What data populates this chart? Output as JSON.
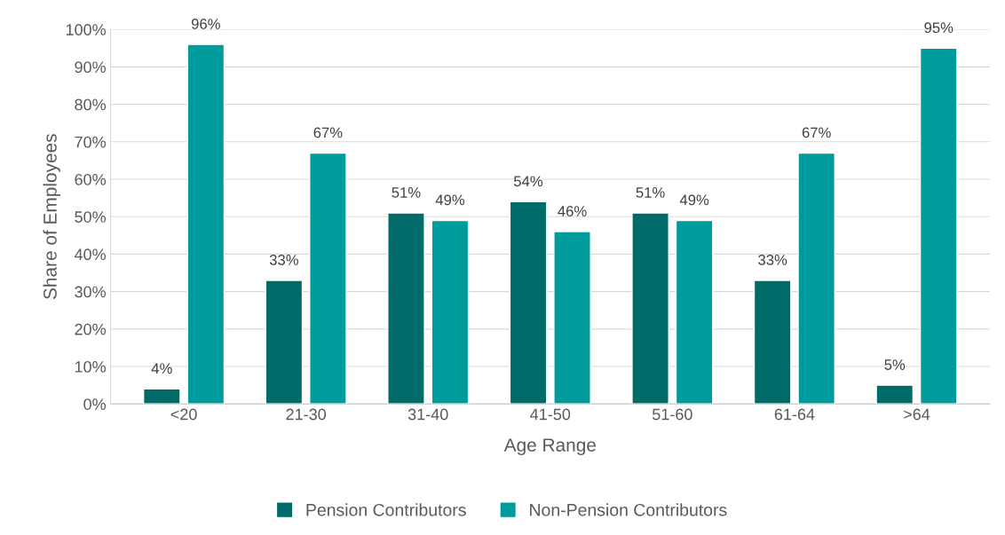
{
  "chart_data": {
    "type": "bar",
    "xlabel": "Age Range",
    "ylabel": "Share of Employees",
    "categories": [
      "<20",
      "21-30",
      "31-40",
      "41-50",
      "51-60",
      "61-64",
      ">64"
    ],
    "series": [
      {
        "name": "Pension Contributors",
        "color": "#006b68",
        "values": [
          4,
          33,
          51,
          54,
          51,
          33,
          5
        ],
        "value_labels": [
          "4%",
          "33%",
          "51%",
          "54%",
          "51%",
          "33%",
          "5%"
        ]
      },
      {
        "name": "Non-Pension Contributors",
        "color": "#009b9b",
        "values": [
          96,
          67,
          49,
          46,
          49,
          67,
          95
        ],
        "value_labels": [
          "96%",
          "67%",
          "49%",
          "46%",
          "49%",
          "67%",
          "95%"
        ]
      }
    ],
    "ylim": [
      0,
      100
    ],
    "yticks": [
      {
        "value": 0,
        "label": "0%"
      },
      {
        "value": 10,
        "label": "10%"
      },
      {
        "value": 20,
        "label": "20%"
      },
      {
        "value": 30,
        "label": "30%"
      },
      {
        "value": 40,
        "label": "40%"
      },
      {
        "value": 50,
        "label": "50%"
      },
      {
        "value": 60,
        "label": "60%"
      },
      {
        "value": 70,
        "label": "70%"
      },
      {
        "value": 80,
        "label": "80%"
      },
      {
        "value": 90,
        "label": "90%"
      },
      {
        "value": 100,
        "label": "100%"
      }
    ],
    "grid": "y",
    "legend": "bottom"
  }
}
